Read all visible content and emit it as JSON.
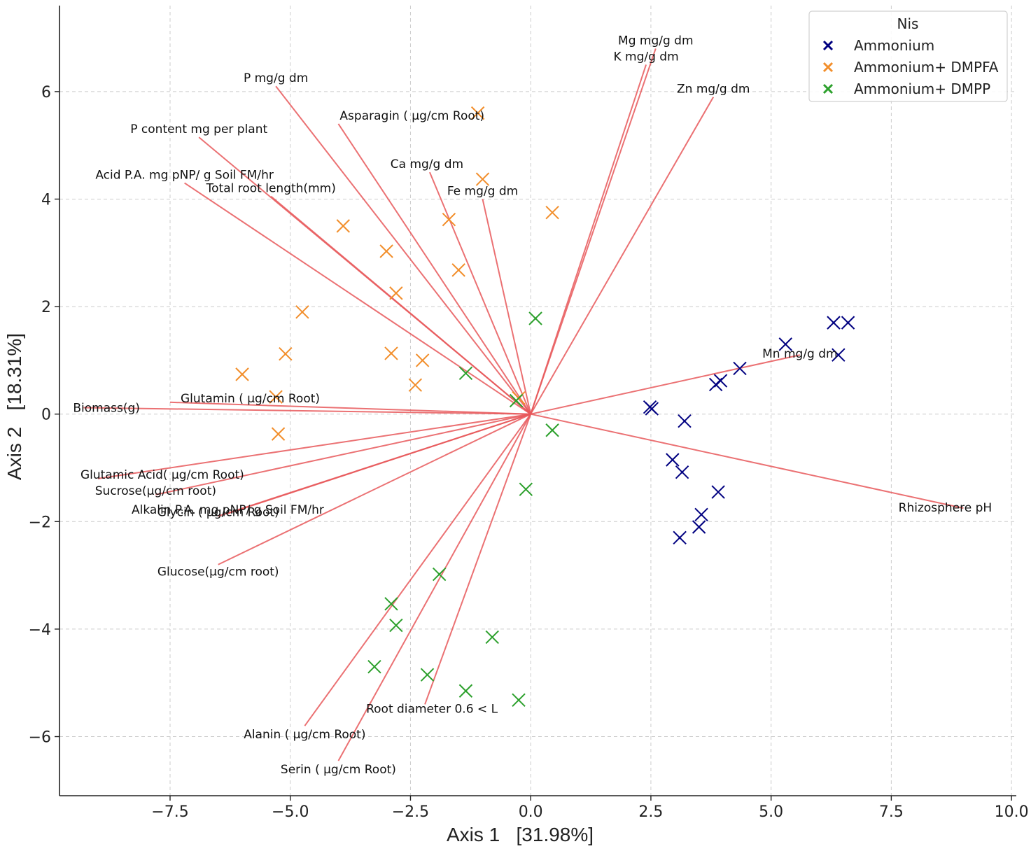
{
  "chart_data": {
    "type": "scatter",
    "subtype": "pca-biplot",
    "xlabel": "Axis 1   [31.98%]",
    "ylabel": "Axis 2   [18.31%]",
    "xlim": [
      -9.8,
      10.1
    ],
    "ylim": [
      -7.1,
      7.6
    ],
    "xticks": [
      -7.5,
      -5.0,
      -2.5,
      0.0,
      2.5,
      5.0,
      7.5,
      10.0
    ],
    "xtick_labels": [
      "−7.5",
      "−5.0",
      "−2.5",
      "0.0",
      "2.5",
      "5.0",
      "7.5",
      "10.0"
    ],
    "yticks": [
      6,
      4,
      2,
      0,
      -2,
      -4,
      -6
    ],
    "ytick_labels": [
      "6",
      "4",
      "2",
      "0",
      "−2",
      "−4",
      "−6"
    ],
    "grid": true,
    "legend": {
      "title": "Nis",
      "position": "top-right",
      "entries": [
        "Ammonium",
        "Ammonium+ DMPFA",
        "Ammonium+ DMPP"
      ]
    },
    "series": [
      {
        "name": "Ammonium",
        "color": "#000080",
        "marker": "x",
        "points": [
          [
            6.6,
            1.7
          ],
          [
            6.3,
            1.7
          ],
          [
            6.4,
            1.1
          ],
          [
            5.3,
            1.3
          ],
          [
            4.35,
            0.85
          ],
          [
            3.95,
            0.62
          ],
          [
            3.85,
            0.55
          ],
          [
            2.48,
            0.13
          ],
          [
            2.52,
            0.1
          ],
          [
            3.2,
            -0.13
          ],
          [
            2.95,
            -0.85
          ],
          [
            3.15,
            -1.08
          ],
          [
            3.9,
            -1.45
          ],
          [
            3.55,
            -1.87
          ],
          [
            3.5,
            -2.1
          ],
          [
            3.1,
            -2.3
          ]
        ]
      },
      {
        "name": "Ammonium+ DMPFA",
        "color": "#f28e2b",
        "marker": "x",
        "points": [
          [
            -1.1,
            5.6
          ],
          [
            -1.0,
            4.37
          ],
          [
            0.45,
            3.75
          ],
          [
            -1.7,
            3.62
          ],
          [
            -3.9,
            3.5
          ],
          [
            -3.0,
            3.03
          ],
          [
            -1.5,
            2.68
          ],
          [
            -2.8,
            2.25
          ],
          [
            -4.75,
            1.9
          ],
          [
            -5.1,
            1.12
          ],
          [
            -2.9,
            1.13
          ],
          [
            -2.25,
            1.0
          ],
          [
            -6.0,
            0.74
          ],
          [
            -2.4,
            0.54
          ],
          [
            -5.3,
            0.32
          ],
          [
            -0.25,
            0.3
          ],
          [
            -5.25,
            -0.37
          ]
        ]
      },
      {
        "name": "Ammonium+ DMPP",
        "color": "#2ca02c",
        "marker": "x",
        "points": [
          [
            0.1,
            1.78
          ],
          [
            -1.35,
            0.76
          ],
          [
            -0.3,
            0.25
          ],
          [
            0.45,
            -0.3
          ],
          [
            -0.1,
            -1.4
          ],
          [
            -1.9,
            -2.98
          ],
          [
            -2.9,
            -3.53
          ],
          [
            -2.8,
            -3.93
          ],
          [
            -0.8,
            -4.15
          ],
          [
            -3.25,
            -4.7
          ],
          [
            -2.15,
            -4.85
          ],
          [
            -1.35,
            -5.15
          ],
          [
            -0.25,
            -5.32
          ]
        ]
      }
    ],
    "loadings": [
      {
        "label": "Mg mg/g dm",
        "x": 2.6,
        "y": 6.8
      },
      {
        "label": "K mg/g dm",
        "x": 2.4,
        "y": 6.5
      },
      {
        "label": "Zn mg/g dm",
        "x": 3.8,
        "y": 5.9
      },
      {
        "label": "P mg/g dm",
        "x": -5.3,
        "y": 6.1
      },
      {
        "label": "Asparagin ( µg/cm Root)",
        "x": -4.0,
        "y": 5.4
      },
      {
        "label": "P content mg per plant",
        "x": -6.9,
        "y": 5.15
      },
      {
        "label": "Ca mg/g dm",
        "x": -2.1,
        "y": 4.5
      },
      {
        "label": "Fe mg/g dm",
        "x": -1.0,
        "y": 4.0
      },
      {
        "label": "Acid P.A. mg pNP/ g Soil FM/hr",
        "x": -7.2,
        "y": 4.3
      },
      {
        "label": "Total root length(mm)",
        "x": -5.4,
        "y": 4.05
      },
      {
        "label": "Mn mg/g dm",
        "x": 5.6,
        "y": 1.1
      },
      {
        "label": "Biomass(g)",
        "x": -9.3,
        "y": 0.12
      },
      {
        "label": "Glutamin ( µg/cm Root)",
        "x": -7.5,
        "y": 0.22
      },
      {
        "label": "Glutamic Acid( µg/cm Root)",
        "x": -9.0,
        "y": -1.2
      },
      {
        "label": "Sucrose(µg/cm root)",
        "x": -7.8,
        "y": -1.5
      },
      {
        "label": "Alkalin P.A. mg pNP/ g Soil FM/hr",
        "x": -6.3,
        "y": -1.85
      },
      {
        "label": "Glycin ( µg/cm Root)",
        "x": -6.5,
        "y": -1.9
      },
      {
        "label": "Glucose(µg/cm root)",
        "x": -6.5,
        "y": -2.8
      },
      {
        "label": "Rhizosphere pH",
        "x": 9.0,
        "y": -1.75
      },
      {
        "label": "Root diameter 0.6 < L",
        "x": -2.2,
        "y": -5.4
      },
      {
        "label": "Alanin ( µg/cm Root)",
        "x": -4.7,
        "y": -5.8
      },
      {
        "label": "Serin ( µg/cm Root)",
        "x": -4.0,
        "y": -6.45
      }
    ]
  },
  "colors": {
    "loading_line": "#e8585a",
    "grid": "#cccccc",
    "axis": "#222222"
  }
}
